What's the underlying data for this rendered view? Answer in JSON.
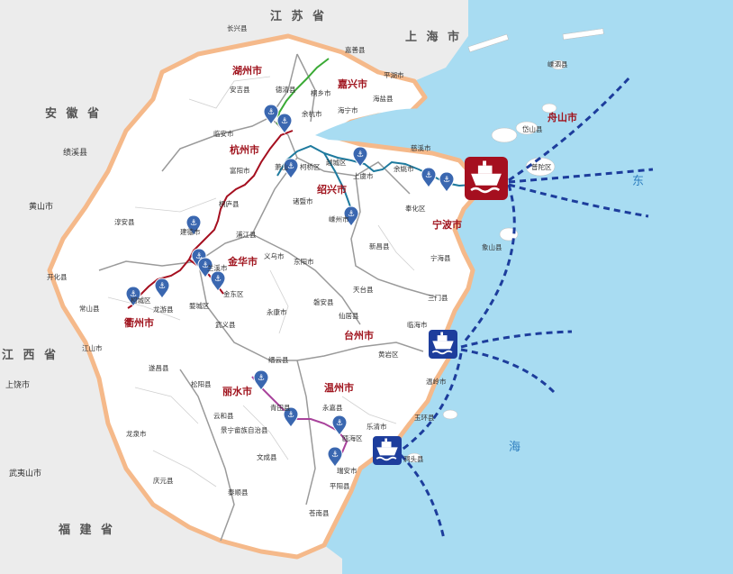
{
  "map": {
    "title": "",
    "colors": {
      "sea": "#a8dcf2",
      "land": "#ffffff",
      "outside": "#ececec",
      "province_border": "#f5b98a",
      "city_label": "#a0141e",
      "route_red": "#a50f1f",
      "route_blue": "#1e7a9e",
      "route_green": "#3aaa35",
      "route_purple": "#a8429b",
      "shipping_lane": "#1d3d9c"
    },
    "neighbors": {
      "jiangsu": "江 苏 省",
      "shanghai": "上 海 市",
      "anhui": "安 徽 省",
      "jiangxi": "江 西 省",
      "fujian": "福 建 省"
    },
    "outside_places": {
      "jixi": "绩溪县",
      "huangshan": "黄山市",
      "shangrao": "上饶市",
      "wuyishan": "武夷山市"
    },
    "cities": {
      "huzhou": "湖州市",
      "jiaxing": "嘉兴市",
      "hangzhou": "杭州市",
      "shaoxing": "绍兴市",
      "ningbo": "宁波市",
      "zhoushan": "舟山市",
      "jinhua": "金华市",
      "quzhou": "衢州市",
      "taizhou": "台州市",
      "lishui": "丽水市",
      "wenzhou": "温州市"
    },
    "counties": {
      "changxing": "长兴县",
      "anji": "安吉县",
      "deqing": "德清县",
      "jiashan": "嘉善县",
      "pinghu": "平湖市",
      "tongxiang": "桐乡市",
      "haining": "海宁市",
      "haiyan": "海盐县",
      "yuhang": "余杭市",
      "linan": "临安市",
      "shengsi": "嵊泗县",
      "daishan": "岱山县",
      "putuo": "普陀区",
      "fuyang": "富阳市",
      "xiaoshan": "萧山",
      "keqiao": "柯桥区",
      "yuecheng": "越城区",
      "shangyu": "上虞市",
      "yuyao": "余姚市",
      "cixi": "慈溪市",
      "fenghua": "奉化区",
      "zhuji": "诸暨市",
      "tonglu": "桐庐县",
      "chunan": "淳安县",
      "jiande": "建德市",
      "pujiang": "浦江县",
      "yiwu": "义乌市",
      "dongyang": "东阳市",
      "shengzhou": "嵊州市",
      "xinchang": "新昌县",
      "xiangshan": "象山县",
      "ninghai": "宁海县",
      "kaihua": "开化县",
      "changshan": "常山县",
      "kecheng": "柯城区",
      "longyou": "龙游县",
      "lanxi": "兰溪市",
      "jindong": "金东区",
      "wucheng": "婺城区",
      "yongkang": "永康市",
      "panan": "磐安县",
      "tiantai": "天台县",
      "sanmen": "三门县",
      "xianju": "仙居县",
      "linhai": "临海市",
      "jiangshan": "江山市",
      "wuyi": "武义县",
      "huangyan": "黄岩区",
      "jinyun": "缙云县",
      "suichang": "遂昌县",
      "songyang": "松阳县",
      "wenling": "温岭市",
      "qingtian": "青田县",
      "yongjia": "永嘉县",
      "yuhuan": "玉环县",
      "yunhe": "云和县",
      "jingning": "景宁畲族自治县",
      "leqing": "乐清市",
      "longquan": "龙泉市",
      "ouhai": "瓯海区",
      "dongtou": "洞头县",
      "wencheng": "文成县",
      "ruian": "瑞安市",
      "pingyang": "平阳县",
      "qingyuan": "庆元县",
      "taishun": "泰顺县",
      "cangnan": "苍南县"
    },
    "sea_labels": {
      "dong": "东",
      "hai": "海"
    },
    "port_icons": [
      "ningbo-zhoushan-port",
      "taizhou-port",
      "wenzhou-port"
    ]
  }
}
